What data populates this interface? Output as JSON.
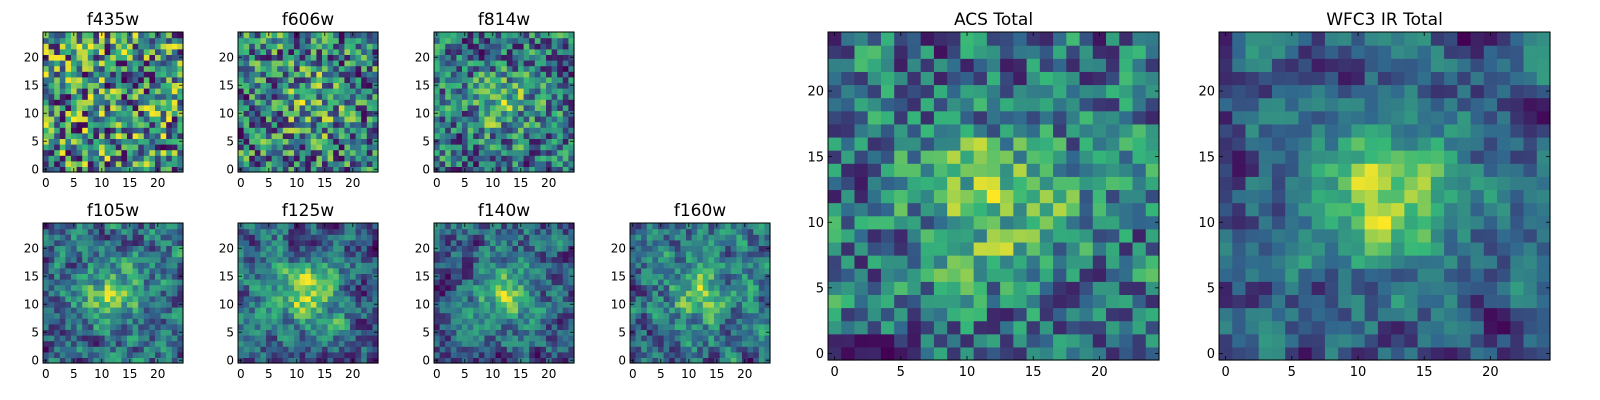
{
  "figure": {
    "colormap": "viridis",
    "colors": [
      "#440154",
      "#31688e",
      "#35b779",
      "#fde725"
    ]
  },
  "chart_data": [
    {
      "type": "heatmap",
      "title": "f435w",
      "grid": [
        25,
        25
      ],
      "xlim": [
        -0.5,
        24.5
      ],
      "ylim": [
        -0.5,
        24.5
      ],
      "xticks": [
        "0",
        "5",
        "10",
        "15",
        "20"
      ],
      "yticks": [
        "0",
        "5",
        "10",
        "15",
        "20"
      ],
      "seed": 11,
      "smooth": 0.0,
      "center_boost": 0.0
    },
    {
      "type": "heatmap",
      "title": "f606w",
      "grid": [
        25,
        25
      ],
      "xlim": [
        -0.5,
        24.5
      ],
      "ylim": [
        -0.5,
        24.5
      ],
      "xticks": [
        "0",
        "5",
        "10",
        "15",
        "20"
      ],
      "yticks": [
        "0",
        "5",
        "10",
        "15",
        "20"
      ],
      "seed": 23,
      "smooth": 0.2,
      "center_boost": 0.2
    },
    {
      "type": "heatmap",
      "title": "f814w",
      "grid": [
        25,
        25
      ],
      "xlim": [
        -0.5,
        24.5
      ],
      "ylim": [
        -0.5,
        24.5
      ],
      "xticks": [
        "0",
        "5",
        "10",
        "15",
        "20"
      ],
      "yticks": [
        "0",
        "5",
        "10",
        "15",
        "20"
      ],
      "seed": 37,
      "smooth": 0.3,
      "center_boost": 0.3
    },
    {
      "type": "heatmap",
      "title": "f105w",
      "grid": [
        25,
        25
      ],
      "xlim": [
        -0.5,
        24.5
      ],
      "ylim": [
        -0.5,
        24.5
      ],
      "xticks": [
        "0",
        "5",
        "10",
        "15",
        "20"
      ],
      "yticks": [
        "0",
        "5",
        "10",
        "15",
        "20"
      ],
      "seed": 41,
      "smooth": 0.55,
      "center_boost": 0.45
    },
    {
      "type": "heatmap",
      "title": "f125w",
      "grid": [
        25,
        25
      ],
      "xlim": [
        -0.5,
        24.5
      ],
      "ylim": [
        -0.5,
        24.5
      ],
      "xticks": [
        "0",
        "5",
        "10",
        "15",
        "20"
      ],
      "yticks": [
        "0",
        "5",
        "10",
        "15",
        "20"
      ],
      "seed": 53,
      "smooth": 0.6,
      "center_boost": 0.5
    },
    {
      "type": "heatmap",
      "title": "f140w",
      "grid": [
        25,
        25
      ],
      "xlim": [
        -0.5,
        24.5
      ],
      "ylim": [
        -0.5,
        24.5
      ],
      "xticks": [
        "0",
        "5",
        "10",
        "15",
        "20"
      ],
      "yticks": [
        "0",
        "5",
        "10",
        "15",
        "20"
      ],
      "seed": 67,
      "smooth": 0.6,
      "center_boost": 0.45
    },
    {
      "type": "heatmap",
      "title": "f160w",
      "grid": [
        25,
        25
      ],
      "xlim": [
        -0.5,
        24.5
      ],
      "ylim": [
        -0.5,
        24.5
      ],
      "xticks": [
        "0",
        "5",
        "10",
        "15",
        "20"
      ],
      "yticks": [
        "0",
        "5",
        "10",
        "15",
        "20"
      ],
      "seed": 79,
      "smooth": 0.55,
      "center_boost": 0.4
    },
    {
      "type": "heatmap",
      "title": "ACS Total",
      "grid": [
        25,
        25
      ],
      "xlim": [
        -0.5,
        24.5
      ],
      "ylim": [
        -0.5,
        24.5
      ],
      "xticks": [
        "0",
        "5",
        "10",
        "15",
        "20"
      ],
      "yticks": [
        "0",
        "5",
        "10",
        "15",
        "20"
      ],
      "seed": 97,
      "smooth": 0.35,
      "center_boost": 0.4
    },
    {
      "type": "heatmap",
      "title": "WFC3 IR Total",
      "grid": [
        25,
        25
      ],
      "xlim": [
        -0.5,
        24.5
      ],
      "ylim": [
        -0.5,
        24.5
      ],
      "xticks": [
        "0",
        "5",
        "10",
        "15",
        "20"
      ],
      "yticks": [
        "0",
        "5",
        "10",
        "15",
        "20"
      ],
      "seed": 113,
      "smooth": 0.65,
      "center_boost": 0.6
    }
  ]
}
